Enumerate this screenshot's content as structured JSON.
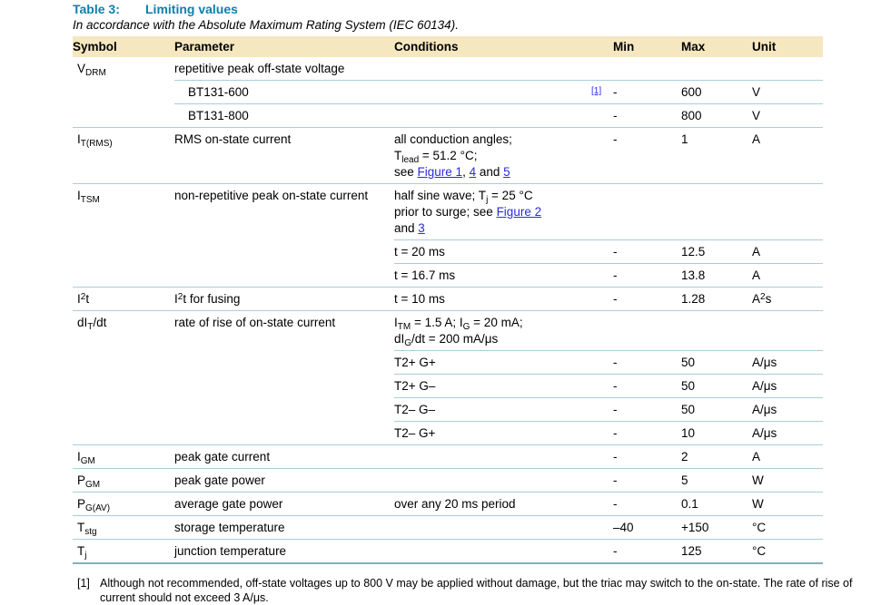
{
  "caption": {
    "label": "Table 3:",
    "title": "Limiting values"
  },
  "subtitle": "In accordance with the Absolute Maximum Rating System (IEC 60134).",
  "columns": [
    "Symbol",
    "Parameter",
    "Conditions",
    "Min",
    "Max",
    "Unit"
  ],
  "colors": {
    "caption_teal": "#0F7EAB",
    "link_blue": "#2B2BDE",
    "header_background": "#F5E7C0",
    "row_separator": "#AACDD9",
    "table_bottom_border": "#82AEBF"
  },
  "rows": [
    {
      "sep": "none",
      "symbol": [
        {
          "t": "V"
        },
        {
          "t": "DRM",
          "sub": true
        }
      ],
      "parameter": [
        {
          "t": "repetitive peak off-state voltage"
        }
      ]
    },
    {
      "sep": "param",
      "indent": true,
      "parameter": [
        {
          "t": "BT131-600"
        }
      ],
      "min": "-",
      "min_ref": "[1]",
      "max": "600",
      "unit": [
        {
          "t": "V"
        }
      ]
    },
    {
      "sep": "param",
      "indent": true,
      "parameter": [
        {
          "t": "BT131-800"
        }
      ],
      "min": "-",
      "max": "800",
      "unit": [
        {
          "t": "V"
        }
      ]
    },
    {
      "sep": "full",
      "symbol": [
        {
          "t": "I"
        },
        {
          "t": "T(RMS)",
          "sub": true
        }
      ],
      "parameter": [
        {
          "t": "RMS on-state current"
        }
      ],
      "conditions": [
        [
          {
            "t": "all conduction angles;"
          }
        ],
        [
          {
            "t": "T"
          },
          {
            "t": "lead",
            "sub": true
          },
          {
            "t": " = 51.2 °C;"
          }
        ],
        [
          {
            "t": "see "
          },
          {
            "t": "Figure 1",
            "link": true
          },
          {
            "t": ", "
          },
          {
            "t": "4",
            "link": true
          },
          {
            "t": " and "
          },
          {
            "t": "5",
            "link": true
          }
        ]
      ],
      "min": "-",
      "max": "1",
      "unit": [
        {
          "t": "A"
        }
      ]
    },
    {
      "sep": "full",
      "symbol": [
        {
          "t": "I"
        },
        {
          "t": "TSM",
          "sub": true
        }
      ],
      "parameter": [
        {
          "t": "non-repetitive peak on-state current"
        }
      ],
      "conditions": [
        [
          {
            "t": "half sine wave; T"
          },
          {
            "t": "j",
            "sub": true
          },
          {
            "t": " = 25 °C"
          }
        ],
        [
          {
            "t": "prior to surge; see "
          },
          {
            "t": "Figure 2",
            "link": true
          }
        ],
        [
          {
            "t": "and "
          },
          {
            "t": "3",
            "link": true
          }
        ]
      ]
    },
    {
      "sep": "cond",
      "conditions": [
        [
          {
            "t": "t = 20 ms"
          }
        ]
      ],
      "min": "-",
      "max": "12.5",
      "unit": [
        {
          "t": "A"
        }
      ]
    },
    {
      "sep": "cond",
      "conditions": [
        [
          {
            "t": "t = 16.7 ms"
          }
        ]
      ],
      "min": "-",
      "max": "13.8",
      "unit": [
        {
          "t": "A"
        }
      ]
    },
    {
      "sep": "full",
      "symbol": [
        {
          "t": "I"
        },
        {
          "t": "2",
          "sup": true
        },
        {
          "t": "t"
        }
      ],
      "parameter": [
        {
          "t": "I"
        },
        {
          "t": "2",
          "sup": true
        },
        {
          "t": "t for fusing"
        }
      ],
      "conditions": [
        [
          {
            "t": "t = 10 ms"
          }
        ]
      ],
      "min": "-",
      "max": "1.28",
      "unit": [
        {
          "t": "A"
        },
        {
          "t": "2",
          "sup": true
        },
        {
          "t": "s"
        }
      ]
    },
    {
      "sep": "full",
      "symbol": [
        {
          "t": "dI"
        },
        {
          "t": "T",
          "sub": true
        },
        {
          "t": "/dt"
        }
      ],
      "parameter": [
        {
          "t": "rate of rise of on-state current"
        }
      ],
      "conditions": [
        [
          {
            "t": "I"
          },
          {
            "t": "TM",
            "sub": true
          },
          {
            "t": " = 1.5 A; I"
          },
          {
            "t": "G",
            "sub": true
          },
          {
            "t": " = 20 mA;"
          }
        ],
        [
          {
            "t": "dI"
          },
          {
            "t": "G",
            "sub": true
          },
          {
            "t": "/dt = 200 mA/μs"
          }
        ]
      ]
    },
    {
      "sep": "cond",
      "conditions": [
        [
          {
            "t": "T2+ G+"
          }
        ]
      ],
      "min": "-",
      "max": "50",
      "unit": [
        {
          "t": "A/μs"
        }
      ]
    },
    {
      "sep": "cond",
      "conditions": [
        [
          {
            "t": "T2+ G–"
          }
        ]
      ],
      "min": "-",
      "max": "50",
      "unit": [
        {
          "t": "A/μs"
        }
      ]
    },
    {
      "sep": "cond",
      "conditions": [
        [
          {
            "t": "T2– G–"
          }
        ]
      ],
      "min": "-",
      "max": "50",
      "unit": [
        {
          "t": "A/μs"
        }
      ]
    },
    {
      "sep": "cond",
      "conditions": [
        [
          {
            "t": "T2– G+"
          }
        ]
      ],
      "min": "-",
      "max": "10",
      "unit": [
        {
          "t": "A/μs"
        }
      ]
    },
    {
      "sep": "full",
      "symbol": [
        {
          "t": "I"
        },
        {
          "t": "GM",
          "sub": true
        }
      ],
      "parameter": [
        {
          "t": "peak gate current"
        }
      ],
      "min": "-",
      "max": "2",
      "unit": [
        {
          "t": "A"
        }
      ]
    },
    {
      "sep": "full",
      "symbol": [
        {
          "t": "P"
        },
        {
          "t": "GM",
          "sub": true
        }
      ],
      "parameter": [
        {
          "t": "peak gate power"
        }
      ],
      "min": "-",
      "max": "5",
      "unit": [
        {
          "t": "W"
        }
      ]
    },
    {
      "sep": "full",
      "symbol": [
        {
          "t": "P"
        },
        {
          "t": "G(AV)",
          "sub": true
        }
      ],
      "parameter": [
        {
          "t": "average gate power"
        }
      ],
      "conditions": [
        [
          {
            "t": "over any 20 ms period"
          }
        ]
      ],
      "min": "-",
      "max": "0.1",
      "unit": [
        {
          "t": "W"
        }
      ]
    },
    {
      "sep": "full",
      "symbol": [
        {
          "t": "T"
        },
        {
          "t": "stg",
          "sub": true
        }
      ],
      "parameter": [
        {
          "t": "storage temperature"
        }
      ],
      "min": "–40",
      "max": "+150",
      "unit": [
        {
          "t": "°C"
        }
      ]
    },
    {
      "sep": "full",
      "symbol": [
        {
          "t": "T"
        },
        {
          "t": "j",
          "sub": true
        }
      ],
      "parameter": [
        {
          "t": "junction temperature"
        }
      ],
      "min": "-",
      "max": "125",
      "unit": [
        {
          "t": "°C"
        }
      ]
    }
  ],
  "footnote": {
    "ref": "[1]",
    "text": "Although not recommended, off-state voltages up to 800 V may be applied without damage, but the triac may switch to the on-state. The rate of rise of current should not exceed 3 A/μs."
  }
}
